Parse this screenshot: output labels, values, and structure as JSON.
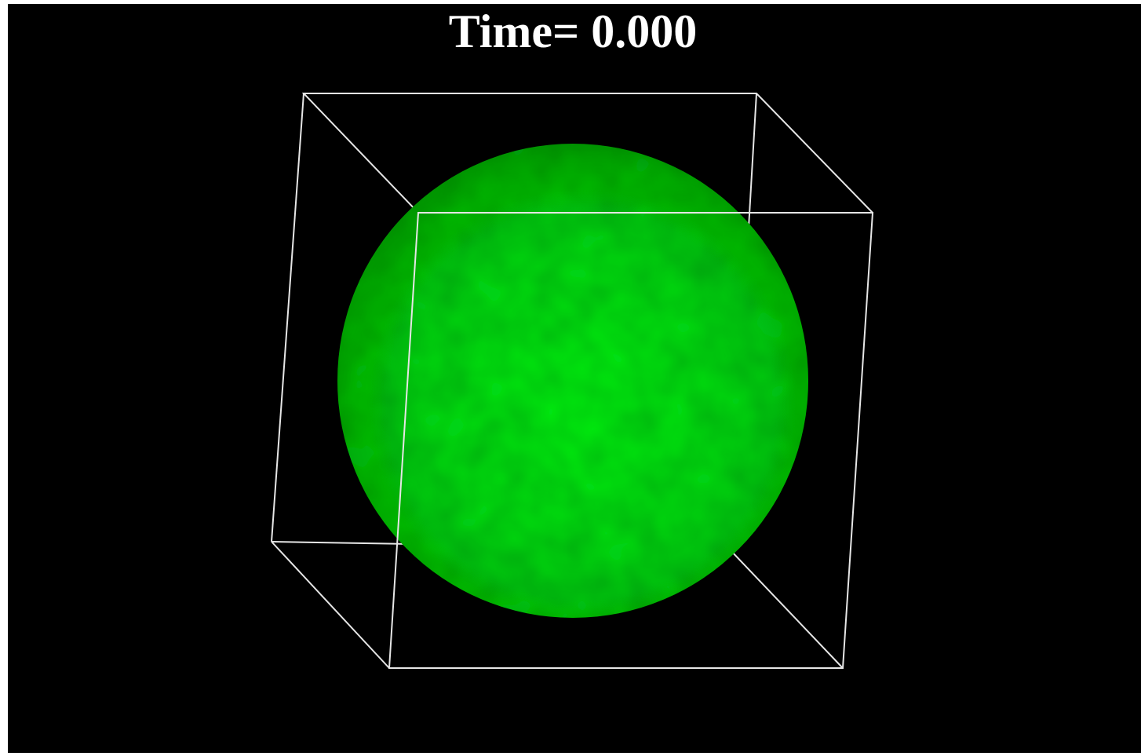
{
  "title": "Time= 0.000"
}
